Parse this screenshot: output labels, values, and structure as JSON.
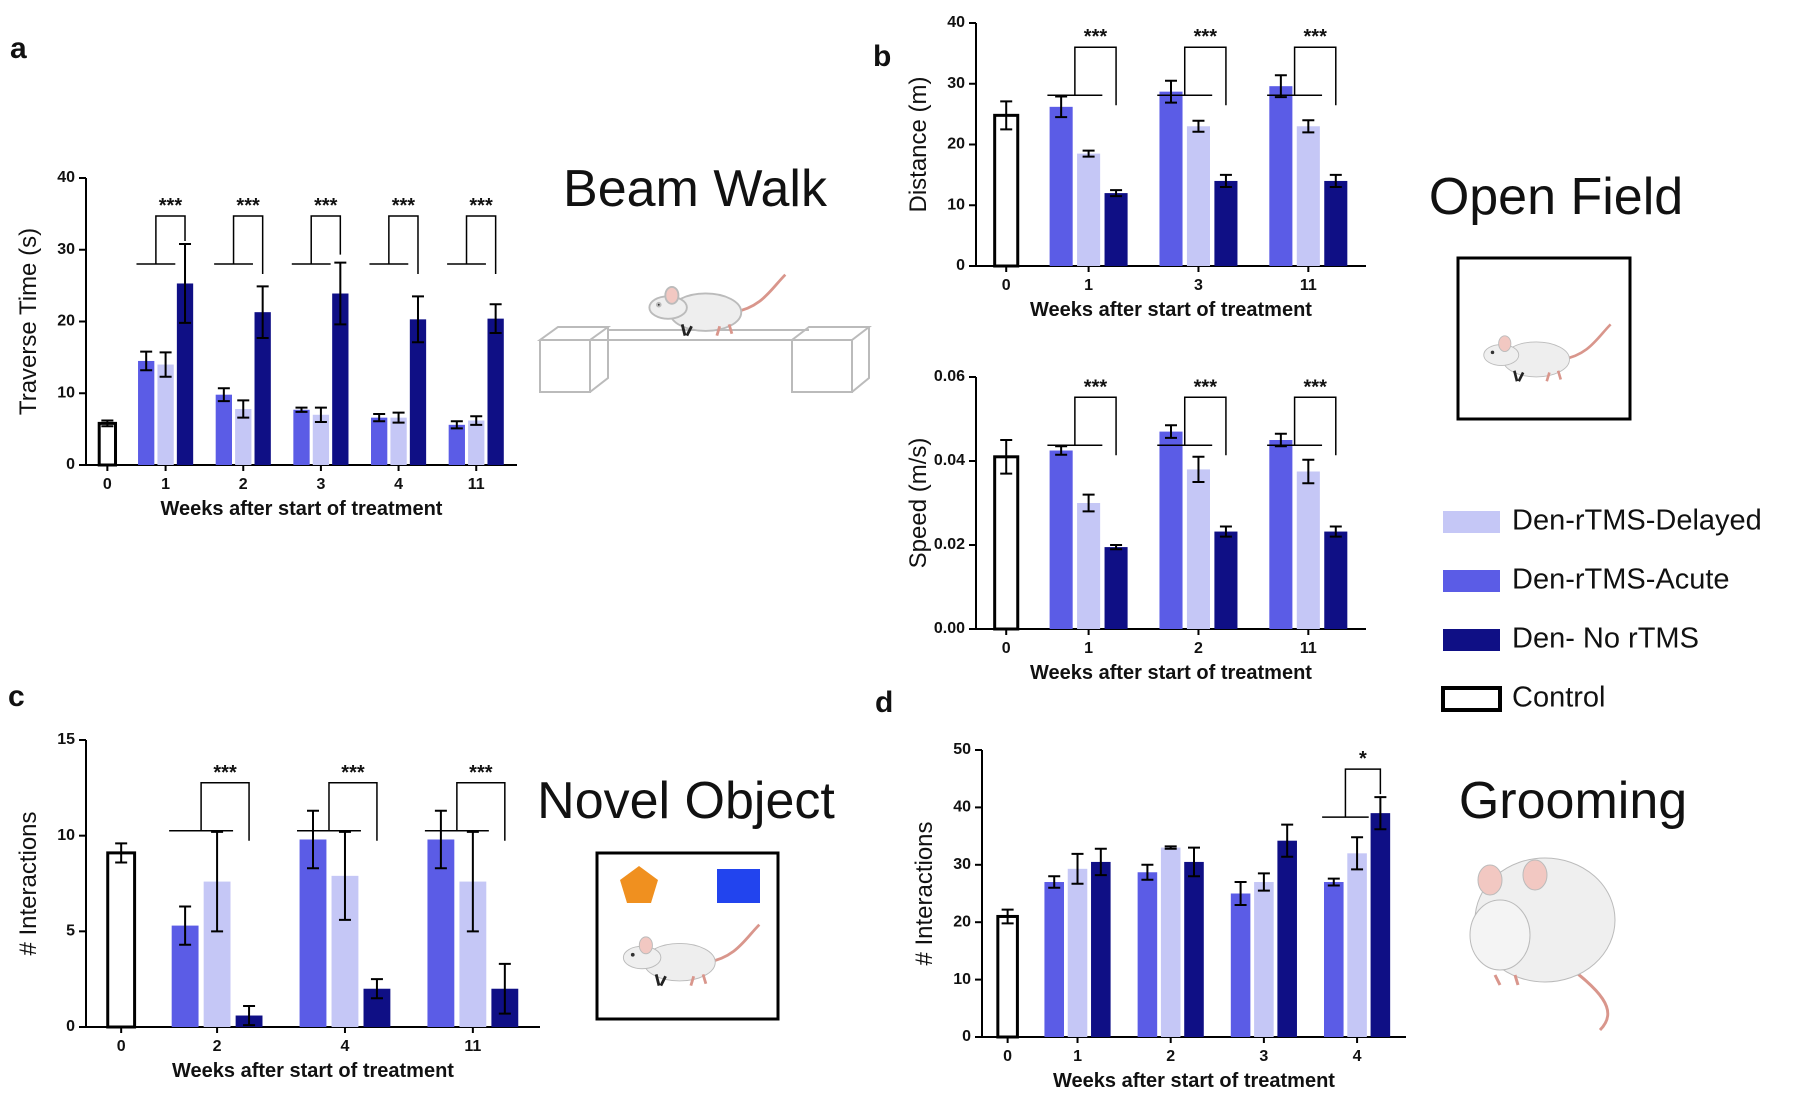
{
  "panels": [
    {
      "letter": "a",
      "title": "Beam Walk"
    },
    {
      "letter": "b",
      "title": "Open Field"
    },
    {
      "letter": "c",
      "title": "Novel Object"
    },
    {
      "letter": "d",
      "title": "Grooming"
    }
  ],
  "legend": [
    {
      "name": "Den-rTMS-Delayed",
      "color": "#c5c7f6"
    },
    {
      "name": "Den-rTMS-Acute",
      "color": "#5b5ce6"
    },
    {
      "name": "Den- No rTMS",
      "color": "#0f0f85"
    },
    {
      "name": "Control",
      "color": "#ffffff",
      "border": "#000000"
    }
  ],
  "chart_data": [
    {
      "type": "bar",
      "y_label": "Traverse Time (s)",
      "x_label": "Weeks after start of treatment",
      "categories": [
        "0",
        "1",
        "2",
        "3",
        "4",
        "11"
      ],
      "series": [
        {
          "values": [
            null,
            14.0,
            7.8,
            7.0,
            6.6,
            6.2
          ],
          "errors": [
            null,
            1.7,
            1.2,
            1.0,
            0.7,
            0.6
          ]
        },
        {
          "values": [
            null,
            14.5,
            9.8,
            7.7,
            6.6,
            5.6
          ],
          "errors": [
            null,
            1.3,
            0.9,
            0.3,
            0.5,
            0.5
          ]
        },
        {
          "values": [
            null,
            25.3,
            21.3,
            23.9,
            20.3,
            20.4
          ],
          "errors": [
            null,
            5.5,
            3.6,
            4.3,
            3.2,
            2.0
          ]
        },
        {
          "values": [
            5.8,
            null,
            null,
            null,
            null,
            null
          ],
          "errors": [
            0.4,
            null,
            null,
            null,
            null,
            null
          ]
        }
      ],
      "significance": [
        "***",
        "***",
        "***",
        "***",
        "***"
      ],
      "ylim": [
        0,
        40
      ],
      "yticks": [
        0,
        10,
        20,
        30,
        40
      ]
    },
    {
      "type": "bar",
      "y_label": "Distance (m)",
      "x_label": "Weeks after start of treatment",
      "categories": [
        "0",
        "1",
        "3",
        "11"
      ],
      "series": [
        {
          "values": [
            null,
            18.5,
            23.0,
            23.0
          ],
          "errors": [
            null,
            0.5,
            0.9,
            1.0
          ]
        },
        {
          "values": [
            null,
            26.2,
            28.7,
            29.6
          ],
          "errors": [
            null,
            1.7,
            1.8,
            1.8
          ]
        },
        {
          "values": [
            null,
            12.0,
            14.0,
            14.0
          ],
          "errors": [
            null,
            0.5,
            1.0,
            1.0
          ]
        },
        {
          "values": [
            24.8,
            null,
            null,
            null
          ],
          "errors": [
            2.3,
            null,
            null,
            null
          ]
        }
      ],
      "significance": [
        "***",
        "***",
        "***"
      ],
      "ylim": [
        0,
        40
      ],
      "yticks": [
        0,
        10,
        20,
        30,
        40
      ]
    },
    {
      "type": "bar",
      "y_label": "Speed (m/s)",
      "x_label": "Weeks after start of treatment",
      "categories": [
        "0",
        "1",
        "2",
        "11"
      ],
      "series": [
        {
          "values": [
            null,
            0.03,
            0.038,
            0.0375
          ],
          "errors": [
            null,
            0.002,
            0.003,
            0.0028
          ]
        },
        {
          "values": [
            null,
            0.0425,
            0.047,
            0.045
          ],
          "errors": [
            null,
            0.001,
            0.0015,
            0.0015
          ]
        },
        {
          "values": [
            null,
            0.0195,
            0.0232,
            0.0232
          ],
          "errors": [
            null,
            0.0005,
            0.0012,
            0.0012
          ]
        },
        {
          "values": [
            0.041,
            null,
            null,
            null
          ],
          "errors": [
            0.004,
            null,
            null,
            null
          ]
        }
      ],
      "significance": [
        "***",
        "***",
        "***"
      ],
      "ylim": [
        0,
        0.06
      ],
      "yticks": [
        {
          "value": 0,
          "label": "0.00"
        },
        0.02,
        0.04,
        0.06
      ]
    },
    {
      "type": "bar",
      "y_label": "# Interactions",
      "x_label": "Weeks after start of treatment",
      "categories": [
        "0",
        "2",
        "4",
        "11"
      ],
      "series": [
        {
          "values": [
            null,
            7.6,
            7.9,
            7.6
          ],
          "errors": [
            null,
            2.6,
            2.3,
            2.6
          ]
        },
        {
          "values": [
            null,
            5.3,
            9.8,
            9.8
          ],
          "errors": [
            null,
            1.0,
            1.5,
            1.5
          ]
        },
        {
          "values": [
            null,
            0.6,
            2.0,
            2.0
          ],
          "errors": [
            null,
            0.5,
            0.5,
            1.3
          ]
        },
        {
          "values": [
            9.1,
            null,
            null,
            null
          ],
          "errors": [
            0.5,
            null,
            null,
            null
          ]
        }
      ],
      "significance": [
        "***",
        "***",
        "***"
      ],
      "ylim": [
        0,
        15
      ],
      "yticks": [
        0,
        5,
        10,
        15
      ]
    },
    {
      "type": "bar",
      "y_label": "# Interactions",
      "x_label": "Weeks after start of treatment",
      "categories": [
        "0",
        "1",
        "2",
        "3",
        "4"
      ],
      "series": [
        {
          "values": [
            null,
            29.3,
            33.0,
            27.0,
            32.0
          ],
          "errors": [
            null,
            2.6,
            0.2,
            1.5,
            2.8
          ]
        },
        {
          "values": [
            null,
            27.0,
            28.7,
            25.0,
            27.0
          ],
          "errors": [
            null,
            1.0,
            1.3,
            2.0,
            0.6
          ]
        },
        {
          "values": [
            null,
            30.5,
            30.5,
            34.2,
            39.0
          ],
          "errors": [
            null,
            2.3,
            2.5,
            2.8,
            2.8
          ]
        },
        {
          "values": [
            21.0,
            null,
            null,
            null,
            null
          ],
          "errors": [
            1.2,
            null,
            null,
            null,
            null
          ]
        }
      ],
      "significance": [
        null,
        null,
        null,
        "*"
      ],
      "ylim": [
        0,
        50
      ],
      "yticks": [
        0,
        10,
        20,
        30,
        40,
        50
      ]
    }
  ]
}
